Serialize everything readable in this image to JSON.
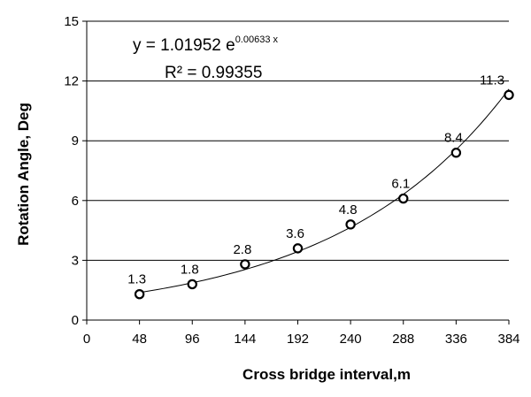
{
  "chart_data": {
    "type": "scatter",
    "xlabel": "Cross bridge interval,m",
    "ylabel": "Rotation Angle, Deg",
    "xlim": [
      0,
      384
    ],
    "ylim": [
      0,
      15
    ],
    "x_ticks": [
      "0",
      "48",
      "96",
      "144",
      "192",
      "240",
      "288",
      "336",
      "384"
    ],
    "y_ticks": [
      "0",
      "3",
      "6",
      "9",
      "12",
      "15"
    ],
    "grid": "horizontal",
    "x": [
      48,
      96,
      144,
      192,
      240,
      288,
      336,
      384
    ],
    "y": [
      1.3,
      1.8,
      2.8,
      3.6,
      4.8,
      6.1,
      8.4,
      11.3
    ],
    "data_labels": [
      "1.3",
      "1.8",
      "2.8",
      "3.6",
      "4.8",
      "6.1",
      "8.4",
      "11.3"
    ],
    "trendline": {
      "type": "exponential",
      "a": 1.01952,
      "b": 0.00633,
      "equation_base": "y = 1.01952 e",
      "equation_exponent": "0.00633 x",
      "r2_label": "R² = 0.99355"
    }
  }
}
